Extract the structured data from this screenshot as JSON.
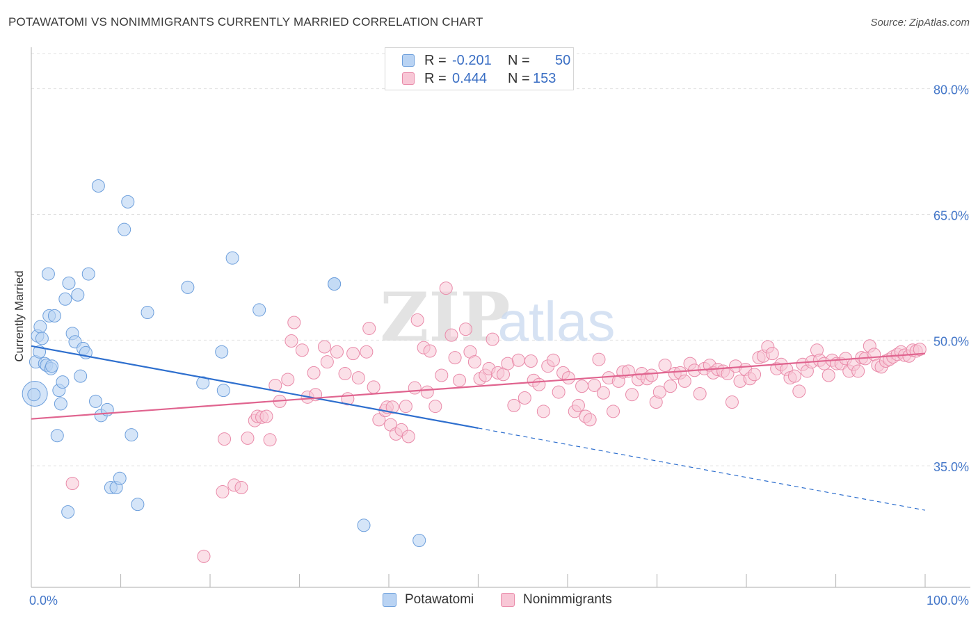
{
  "header": {
    "title": "POTAWATOMI VS NONIMMIGRANTS CURRENTLY MARRIED CORRELATION CHART",
    "source": "Source: ZipAtlas.com"
  },
  "watermark": {
    "zip": "ZIP",
    "atlas": "atlas"
  },
  "legend": {
    "rows": [
      {
        "r_label": "R =",
        "r_value": "-0.201",
        "n_label": "N =",
        "n_value": "50"
      },
      {
        "r_label": "R =",
        "r_value": "0.444",
        "n_label": "N =",
        "n_value": "153"
      }
    ]
  },
  "bottom_legend": [
    "Potawatomi",
    "Nonimmigrants"
  ],
  "colors": {
    "blue_fill": "#b9d3f3",
    "blue_stroke": "#6d9fdc",
    "blue_line": "#2e6fce",
    "pink_fill": "#f8c7d6",
    "pink_stroke": "#e98aa9",
    "pink_line": "#e0648f",
    "axis_label": "#4477c9",
    "grid": "#e0e0e0"
  },
  "chart_data": {
    "type": "scatter",
    "title": "POTAWATOMI VS NONIMMIGRANTS CURRENTLY MARRIED CORRELATION CHART",
    "xlabel": "",
    "ylabel": "Currently Married",
    "xlim": [
      0,
      100
    ],
    "ylim": [
      20.5,
      84.2
    ],
    "x_tick_labels": [
      "0.0%",
      "100.0%"
    ],
    "y_ticks": [
      35,
      50,
      65,
      80
    ],
    "y_tick_labels": [
      "35.0%",
      "50.0%",
      "65.0%",
      "80.0%"
    ],
    "grid": true,
    "legend_position": "top-center",
    "series": [
      {
        "name": "Potawatomi",
        "r": -0.201,
        "n": 50,
        "trend": {
          "x": [
            0,
            50
          ],
          "y": [
            49.3,
            39.5
          ],
          "dashed_to": [
            100,
            29.7
          ]
        },
        "points": [
          [
            0.4,
            43.6
          ],
          [
            0.5,
            47.4
          ],
          [
            0.7,
            50.5
          ],
          [
            0.9,
            48.6
          ],
          [
            1.0,
            51.6
          ],
          [
            1.2,
            50.2
          ],
          [
            1.5,
            47.2
          ],
          [
            1.7,
            47.0
          ],
          [
            1.9,
            57.9
          ],
          [
            2.0,
            52.9
          ],
          [
            2.2,
            46.6
          ],
          [
            2.3,
            46.9
          ],
          [
            2.6,
            52.9
          ],
          [
            2.9,
            38.6
          ],
          [
            3.1,
            44.0
          ],
          [
            3.3,
            42.4
          ],
          [
            3.5,
            45.0
          ],
          [
            3.8,
            54.9
          ],
          [
            4.1,
            29.5
          ],
          [
            4.2,
            56.8
          ],
          [
            4.6,
            50.8
          ],
          [
            4.9,
            49.8
          ],
          [
            5.2,
            55.4
          ],
          [
            5.5,
            45.7
          ],
          [
            5.8,
            49.0
          ],
          [
            6.1,
            48.5
          ],
          [
            6.4,
            57.9
          ],
          [
            7.2,
            42.7
          ],
          [
            7.5,
            68.4
          ],
          [
            7.8,
            41.0
          ],
          [
            8.5,
            41.7
          ],
          [
            8.9,
            32.4
          ],
          [
            9.5,
            32.4
          ],
          [
            9.9,
            33.5
          ],
          [
            10.4,
            63.2
          ],
          [
            10.8,
            66.5
          ],
          [
            11.2,
            38.7
          ],
          [
            11.9,
            30.4
          ],
          [
            13.0,
            53.3
          ],
          [
            17.5,
            56.3
          ],
          [
            19.2,
            44.9
          ],
          [
            21.3,
            48.6
          ],
          [
            21.5,
            44.0
          ],
          [
            22.5,
            59.8
          ],
          [
            25.5,
            53.6
          ],
          [
            33.9,
            56.7
          ],
          [
            33.9,
            56.7
          ],
          [
            37.2,
            27.9
          ],
          [
            43.4,
            26.1
          ],
          [
            0.3,
            43.5
          ]
        ]
      },
      {
        "name": "Nonimmigrants",
        "r": 0.444,
        "n": 153,
        "trend": {
          "x": [
            0,
            100
          ],
          "y": [
            40.6,
            48.4
          ]
        },
        "points": [
          [
            4.6,
            32.9
          ],
          [
            19.3,
            24.2
          ],
          [
            21.4,
            31.9
          ],
          [
            21.6,
            38.2
          ],
          [
            22.7,
            32.7
          ],
          [
            23.5,
            32.4
          ],
          [
            24.2,
            38.3
          ],
          [
            25.0,
            40.4
          ],
          [
            25.3,
            40.9
          ],
          [
            25.8,
            40.8
          ],
          [
            26.3,
            40.9
          ],
          [
            26.7,
            38.1
          ],
          [
            27.3,
            44.6
          ],
          [
            27.8,
            42.7
          ],
          [
            28.7,
            45.3
          ],
          [
            29.1,
            49.9
          ],
          [
            29.4,
            52.1
          ],
          [
            30.3,
            48.8
          ],
          [
            30.9,
            43.2
          ],
          [
            31.6,
            46.1
          ],
          [
            32.8,
            49.2
          ],
          [
            33.1,
            47.4
          ],
          [
            34.2,
            48.6
          ],
          [
            35.1,
            46.0
          ],
          [
            35.4,
            43.0
          ],
          [
            36.0,
            48.4
          ],
          [
            36.6,
            45.5
          ],
          [
            37.5,
            48.6
          ],
          [
            37.8,
            51.4
          ],
          [
            38.3,
            44.4
          ],
          [
            38.9,
            40.5
          ],
          [
            39.6,
            41.6
          ],
          [
            39.8,
            42.0
          ],
          [
            40.2,
            39.9
          ],
          [
            40.8,
            38.8
          ],
          [
            41.4,
            39.3
          ],
          [
            41.9,
            42.1
          ],
          [
            42.2,
            38.5
          ],
          [
            42.9,
            44.3
          ],
          [
            43.2,
            52.4
          ],
          [
            43.9,
            49.1
          ],
          [
            44.3,
            43.8
          ],
          [
            44.6,
            48.7
          ],
          [
            45.2,
            42.1
          ],
          [
            45.9,
            45.8
          ],
          [
            46.4,
            56.2
          ],
          [
            47.0,
            50.6
          ],
          [
            47.4,
            47.9
          ],
          [
            47.9,
            45.2
          ],
          [
            48.6,
            51.3
          ],
          [
            49.1,
            48.6
          ],
          [
            49.6,
            47.4
          ],
          [
            50.2,
            45.4
          ],
          [
            50.8,
            45.8
          ],
          [
            51.2,
            46.6
          ],
          [
            51.6,
            50.1
          ],
          [
            52.2,
            46.1
          ],
          [
            52.8,
            45.9
          ],
          [
            53.3,
            47.2
          ],
          [
            54.0,
            42.2
          ],
          [
            54.5,
            47.6
          ],
          [
            55.2,
            43.1
          ],
          [
            55.9,
            47.5
          ],
          [
            56.2,
            45.2
          ],
          [
            56.8,
            44.7
          ],
          [
            57.3,
            41.5
          ],
          [
            57.8,
            46.9
          ],
          [
            58.4,
            47.6
          ],
          [
            59.0,
            43.8
          ],
          [
            59.5,
            46.1
          ],
          [
            60.1,
            45.5
          ],
          [
            60.8,
            41.5
          ],
          [
            61.2,
            42.2
          ],
          [
            61.6,
            44.5
          ],
          [
            62.0,
            40.9
          ],
          [
            62.5,
            40.5
          ],
          [
            63.0,
            44.6
          ],
          [
            63.5,
            47.7
          ],
          [
            64.0,
            43.7
          ],
          [
            64.6,
            45.5
          ],
          [
            65.1,
            41.5
          ],
          [
            65.7,
            45.1
          ],
          [
            66.2,
            46.2
          ],
          [
            66.8,
            46.3
          ],
          [
            67.2,
            43.5
          ],
          [
            67.9,
            45.3
          ],
          [
            68.3,
            46.0
          ],
          [
            68.9,
            45.4
          ],
          [
            69.4,
            45.8
          ],
          [
            69.9,
            42.6
          ],
          [
            70.3,
            43.8
          ],
          [
            70.9,
            47.0
          ],
          [
            71.5,
            44.5
          ],
          [
            72.0,
            46.0
          ],
          [
            72.6,
            46.1
          ],
          [
            73.1,
            45.1
          ],
          [
            73.7,
            47.2
          ],
          [
            74.2,
            46.4
          ],
          [
            74.8,
            43.6
          ],
          [
            75.3,
            46.6
          ],
          [
            75.9,
            47.0
          ],
          [
            76.3,
            46.1
          ],
          [
            76.8,
            46.5
          ],
          [
            77.4,
            46.3
          ],
          [
            77.9,
            46.0
          ],
          [
            78.4,
            42.6
          ],
          [
            78.8,
            46.9
          ],
          [
            79.3,
            45.1
          ],
          [
            79.9,
            46.5
          ],
          [
            80.4,
            45.4
          ],
          [
            80.9,
            45.9
          ],
          [
            81.4,
            47.9
          ],
          [
            81.9,
            48.1
          ],
          [
            82.4,
            49.2
          ],
          [
            82.9,
            48.4
          ],
          [
            83.4,
            46.6
          ],
          [
            83.9,
            47.1
          ],
          [
            84.5,
            46.5
          ],
          [
            84.9,
            45.5
          ],
          [
            85.4,
            45.7
          ],
          [
            85.9,
            43.9
          ],
          [
            86.3,
            47.1
          ],
          [
            86.8,
            46.3
          ],
          [
            87.3,
            47.4
          ],
          [
            87.9,
            48.8
          ],
          [
            88.2,
            47.6
          ],
          [
            88.7,
            47.2
          ],
          [
            89.2,
            45.8
          ],
          [
            89.6,
            47.6
          ],
          [
            90.1,
            47.2
          ],
          [
            90.6,
            47.2
          ],
          [
            91.1,
            47.8
          ],
          [
            91.5,
            46.3
          ],
          [
            92.0,
            47.1
          ],
          [
            92.5,
            46.3
          ],
          [
            92.9,
            47.9
          ],
          [
            93.3,
            47.8
          ],
          [
            93.8,
            49.3
          ],
          [
            94.3,
            48.3
          ],
          [
            94.7,
            47.0
          ],
          [
            95.1,
            46.8
          ],
          [
            95.6,
            47.5
          ],
          [
            96.0,
            47.7
          ],
          [
            96.4,
            48.0
          ],
          [
            96.9,
            48.3
          ],
          [
            97.3,
            48.6
          ],
          [
            97.7,
            48.2
          ],
          [
            98.2,
            48.1
          ],
          [
            98.6,
            48.8
          ],
          [
            99.0,
            48.7
          ],
          [
            99.4,
            48.9
          ],
          [
            40.4,
            42.0
          ],
          [
            31.8,
            43.5
          ]
        ]
      }
    ]
  }
}
